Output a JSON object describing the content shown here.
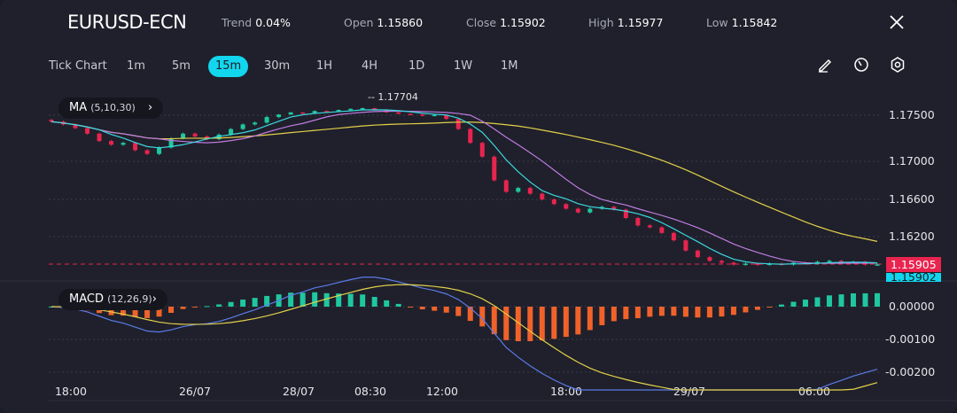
{
  "header": {
    "symbol": "EURUSD-ECN",
    "stats": [
      {
        "label": "Trend",
        "value": "0.04%"
      },
      {
        "label": "Open",
        "value": "1.15860"
      },
      {
        "label": "Close",
        "value": "1.15902"
      },
      {
        "label": "High",
        "value": "1.15977"
      },
      {
        "label": "Low",
        "value": "1.15842"
      }
    ],
    "close_icon": "close-icon"
  },
  "timeframes": [
    "Tick Chart",
    "1m",
    "5m",
    "15m",
    "30m",
    "1H",
    "4H",
    "1D",
    "1W",
    "1M"
  ],
  "active_timeframe": "15m",
  "tools": [
    "pencil-icon",
    "timer-icon",
    "settings-gear-icon"
  ],
  "indicators": {
    "ma": {
      "name": "MA",
      "params": "(5,10,30)"
    },
    "macd": {
      "name": "MACD",
      "params": "(12,26,9)"
    }
  },
  "colors": {
    "up": "#1fc7a0",
    "down": "#e8244f",
    "ma5": "#3ad8e0",
    "ma10": "#c07be0",
    "ma30": "#e3d04a",
    "macd": "#5b7be8",
    "signal": "#e3d04a",
    "hist_pos": "#1fc7a0",
    "hist_neg": "#f0622a",
    "accent": "#12d6ee"
  },
  "chart_data": {
    "type": "candlestick",
    "price_axis": [
      "1.17500",
      "1.17000",
      "1.16600",
      "1.16200"
    ],
    "macd_axis": [
      "0.00000",
      "-0.00100",
      "-0.00200"
    ],
    "time_axis": [
      "18:00",
      "26/07",
      "28/07",
      "08:30",
      "12:00",
      "18:00",
      "29/07",
      "06:00"
    ],
    "high_marker": "1.17704",
    "last_price": "1.15905",
    "close_price": "1.15902",
    "closes": [
      1.1743,
      1.174,
      1.1736,
      1.173,
      1.1722,
      1.1718,
      1.172,
      1.1712,
      1.1708,
      1.1715,
      1.1725,
      1.173,
      1.1727,
      1.1724,
      1.1729,
      1.1735,
      1.174,
      1.1742,
      1.1748,
      1.1752,
      1.1758,
      1.1756,
      1.1762,
      1.176,
      1.1765,
      1.1768,
      1.177,
      1.1764,
      1.1758,
      1.1754,
      1.1752,
      1.175,
      1.1751,
      1.1746,
      1.1735,
      1.172,
      1.1705,
      1.168,
      1.1668,
      1.1672,
      1.1666,
      1.166,
      1.1655,
      1.165,
      1.1646,
      1.165,
      1.1652,
      1.1649,
      1.164,
      1.1632,
      1.163,
      1.1624,
      1.1616,
      1.1605,
      1.1598,
      1.1594,
      1.1592,
      1.159,
      1.1591,
      1.159,
      1.1591,
      1.159,
      1.1592,
      1.1591,
      1.1593,
      1.1594,
      1.1592,
      1.1593,
      1.159,
      1.15902
    ]
  }
}
